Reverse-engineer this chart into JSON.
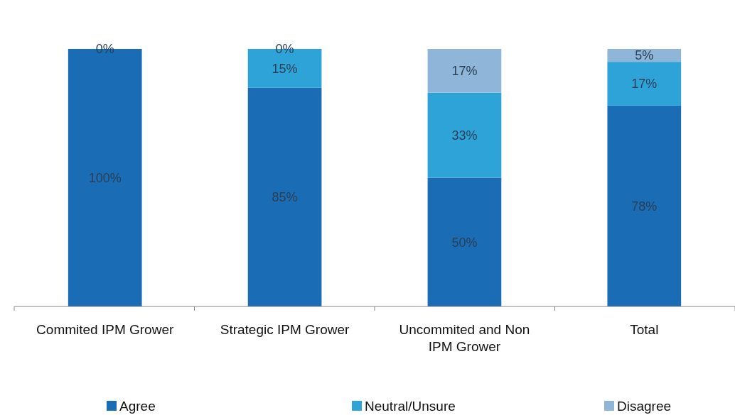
{
  "chart_data": {
    "type": "bar",
    "stacked": true,
    "categories": [
      "Commited IPM Grower",
      "Strategic IPM Grower",
      "Uncommited and Non IPM Grower",
      "Total"
    ],
    "series": [
      {
        "name": "Agree",
        "color": "#1a6db5",
        "values": [
          100,
          85,
          50,
          78
        ],
        "value_labels": [
          "100%",
          "85%",
          "50%",
          "78%"
        ]
      },
      {
        "name": "Neutral/Unsure",
        "color": "#2ea3d8",
        "values": [
          0,
          15,
          33,
          17
        ],
        "value_labels": [
          null,
          "15%",
          "33%",
          "17%"
        ]
      },
      {
        "name": "Disagree",
        "color": "#8fb6d9",
        "values": [
          0,
          0,
          17,
          5
        ],
        "value_labels": [
          "0%",
          "0%",
          "17%",
          "5%"
        ]
      }
    ],
    "legend": "bottom"
  }
}
